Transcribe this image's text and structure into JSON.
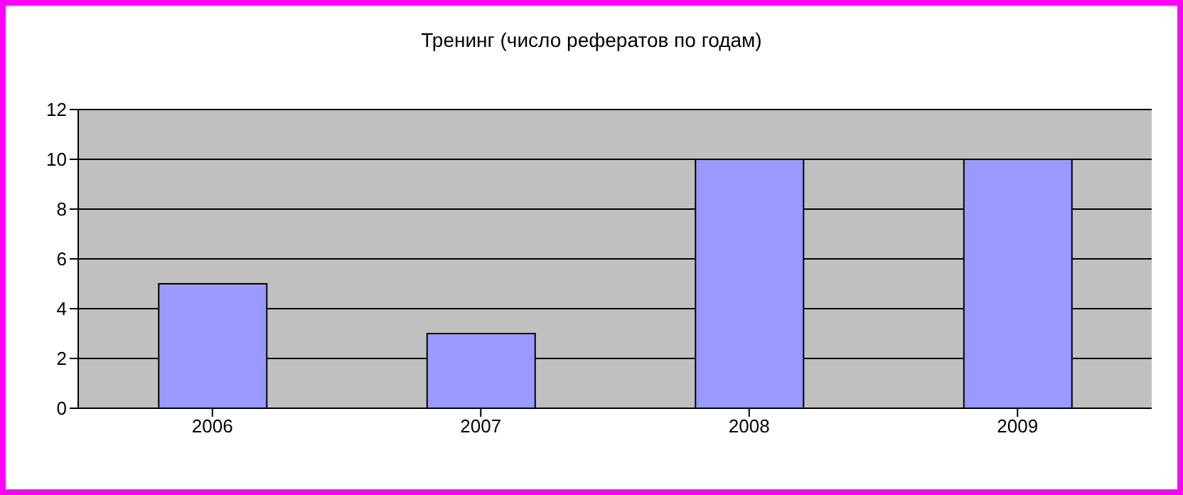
{
  "chart_data": {
    "type": "bar",
    "title": "Тренинг (число рефератов по годам)",
    "categories": [
      "2006",
      "2007",
      "2008",
      "2009"
    ],
    "values": [
      5,
      3,
      10,
      10
    ],
    "color": "#9999ff",
    "ylim": [
      0,
      12
    ],
    "yticks": [
      0,
      2,
      4,
      6,
      8,
      10,
      12
    ],
    "grid": "y"
  }
}
